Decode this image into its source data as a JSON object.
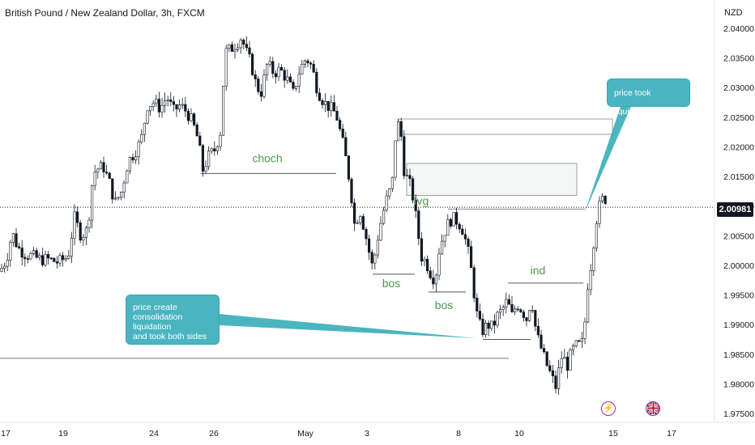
{
  "header": {
    "title": "British Pound / New Zealand Dollar, 3h, FXCM",
    "currency": "NZD"
  },
  "price_tag": "2.00981",
  "callouts": {
    "top": "price took liquidation",
    "bottom": [
      "price create",
      "consolidation liquidation",
      "and took both sides"
    ]
  },
  "annotations": {
    "choch": "choch",
    "fvg": "fvg",
    "bos1": "bos",
    "bos2": "bos",
    "ind": "ind"
  },
  "icons": {
    "event1": "lightning-icon",
    "event2": "uk-flag-icon"
  },
  "colors": {
    "up": "#089981",
    "down": "#131722",
    "level": "#4a9a4a",
    "callout": "#4ab5c0",
    "axis_text": "#131722"
  },
  "chart_data": {
    "type": "candlestick",
    "title": "British Pound / New Zealand Dollar, 3h, FXCM",
    "xlabel": "",
    "ylabel": "NZD",
    "x_tick_labels": [
      "17",
      "19",
      "24",
      "26",
      "May",
      "3",
      "8",
      "10",
      "15",
      "17"
    ],
    "y_ticks": [
      1.975,
      1.98,
      1.985,
      1.99,
      1.995,
      2.0,
      2.005,
      2.01,
      2.015,
      2.02,
      2.025,
      2.03,
      2.035,
      2.04
    ],
    "y_tick_labels": [
      "1.97500",
      "1.98000",
      "1.98500",
      "1.99000",
      "1.99500",
      "2.00000",
      "2.00500",
      "2.01000",
      "2.01500",
      "2.02000",
      "2.02500",
      "2.03000",
      "2.03500",
      "2.04000"
    ],
    "ylim": [
      1.9735,
      2.042
    ],
    "last_price": 2.00981,
    "close_path": [
      [
        0,
        1.999
      ],
      [
        8,
        2.001
      ],
      [
        15,
        2.0055
      ],
      [
        22,
        2.003
      ],
      [
        30,
        2.002
      ],
      [
        40,
        2.0015
      ],
      [
        50,
        2.001
      ],
      [
        60,
        2.001
      ],
      [
        72,
        2.0005
      ],
      [
        84,
        2.0015
      ],
      [
        92,
        2.008
      ],
      [
        100,
        2.005
      ],
      [
        108,
        2.006
      ],
      [
        115,
        2.0155
      ],
      [
        122,
        2.0165
      ],
      [
        128,
        2.0165
      ],
      [
        135,
        2.014
      ],
      [
        142,
        2.0105
      ],
      [
        150,
        2.0125
      ],
      [
        158,
        2.0175
      ],
      [
        166,
        2.019
      ],
      [
        174,
        2.021
      ],
      [
        182,
        2.027
      ],
      [
        190,
        2.0275
      ],
      [
        198,
        2.0265
      ],
      [
        206,
        2.0285
      ],
      [
        214,
        2.026
      ],
      [
        222,
        2.027
      ],
      [
        230,
        2.026
      ],
      [
        238,
        2.024
      ],
      [
        245,
        2.021
      ],
      [
        250,
        2.016
      ],
      [
        258,
        2.0185
      ],
      [
        265,
        2.0195
      ],
      [
        272,
        2.0225
      ],
      [
        278,
        2.036
      ],
      [
        285,
        2.0365
      ],
      [
        292,
        2.0375
      ],
      [
        298,
        2.0385
      ],
      [
        304,
        2.036
      ],
      [
        310,
        2.034
      ],
      [
        316,
        2.0305
      ],
      [
        322,
        2.029
      ],
      [
        330,
        2.034
      ],
      [
        338,
        2.0325
      ],
      [
        346,
        2.033
      ],
      [
        354,
        2.0315
      ],
      [
        362,
        2.029
      ],
      [
        370,
        2.033
      ],
      [
        378,
        2.035
      ],
      [
        385,
        2.0335
      ],
      [
        392,
        2.0295
      ],
      [
        400,
        2.0275
      ],
      [
        408,
        2.0265
      ],
      [
        415,
        2.0255
      ],
      [
        420,
        2.0225
      ],
      [
        425,
        2.0195
      ],
      [
        430,
        2.0155
      ],
      [
        434,
        2.0115
      ],
      [
        438,
        2.0065
      ],
      [
        444,
        2.0095
      ],
      [
        450,
        2.006
      ],
      [
        456,
        2.002
      ],
      [
        460,
        1.9995
      ],
      [
        466,
        2.0045
      ],
      [
        472,
        2.0085
      ],
      [
        478,
        2.0115
      ],
      [
        484,
        2.0135
      ],
      [
        489,
        2.0235
      ],
      [
        494,
        2.024
      ],
      [
        498,
        2.0165
      ],
      [
        503,
        2.0145
      ],
      [
        508,
        2.013
      ],
      [
        512,
        2.0095
      ],
      [
        516,
        2.0055
      ],
      [
        520,
        2.0015
      ],
      [
        526,
        2.0005
      ],
      [
        532,
        1.9985
      ],
      [
        537,
        1.9975
      ],
      [
        542,
        2.0025
      ],
      [
        548,
        2.0055
      ],
      [
        553,
        2.007
      ],
      [
        558,
        2.008
      ],
      [
        564,
        2.0075
      ],
      [
        570,
        2.0065
      ],
      [
        575,
        2.004
      ],
      [
        580,
        2.001
      ],
      [
        585,
        1.9955
      ],
      [
        590,
        1.9905
      ],
      [
        596,
        1.989
      ],
      [
        602,
        1.99
      ],
      [
        608,
        1.9895
      ],
      [
        614,
        1.9915
      ],
      [
        620,
        1.9925
      ],
      [
        626,
        1.994
      ],
      [
        632,
        1.9915
      ],
      [
        638,
        1.9935
      ],
      [
        644,
        1.9925
      ],
      [
        650,
        1.991
      ],
      [
        656,
        1.9945
      ],
      [
        662,
        1.9885
      ],
      [
        668,
        1.986
      ],
      [
        674,
        1.9835
      ],
      [
        680,
        1.9815
      ],
      [
        686,
        1.9795
      ],
      [
        690,
        1.9825
      ],
      [
        694,
        1.985
      ],
      [
        700,
        1.983
      ],
      [
        706,
        1.9855
      ],
      [
        712,
        1.9865
      ],
      [
        718,
        1.9865
      ],
      [
        722,
        1.9905
      ],
      [
        726,
        1.9975
      ],
      [
        730,
        2.0005
      ],
      [
        734,
        2.0055
      ],
      [
        738,
        2.0095
      ],
      [
        742,
        2.0105
      ],
      [
        746,
        2.012
      ],
      [
        750,
        2.0095
      ]
    ],
    "markers": {
      "choch_level": 2.0155,
      "fvg_zone": [
        2.0118,
        2.0172
      ],
      "breaker_top": 2.0247,
      "breaker_line": 2.0221,
      "bos1_level": 1.9985,
      "bos2_level": 1.9955,
      "ind_level": 1.997,
      "consolidation_low_level": 1.9875,
      "range_low_level": 1.9843,
      "liquidity_level": 2.0095
    }
  }
}
